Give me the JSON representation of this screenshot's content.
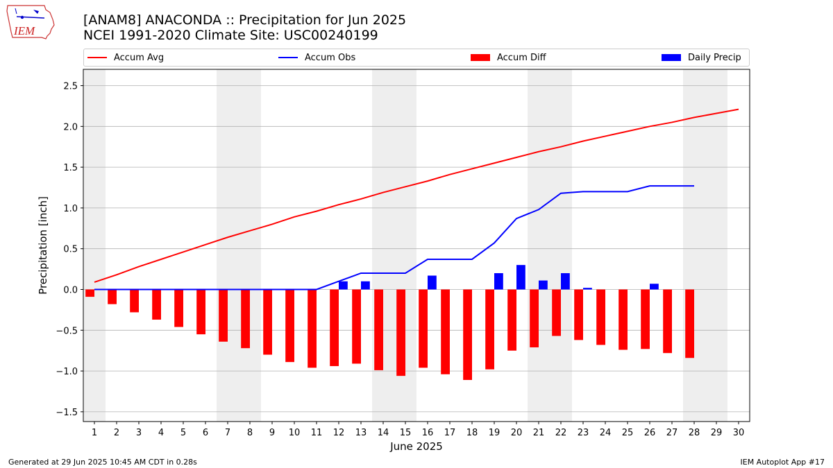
{
  "title_line1": "[ANAM8] ANACONDA :: Precipitation for Jun 2025",
  "title_line2": "NCEI 1991-2020 Climate Site: USC00240199",
  "footer_left": "Generated at 29 Jun 2025 10:45 AM CDT in 0.28s",
  "footer_right": "IEM Autoplot App #17",
  "logo_text": "IEM",
  "colors": {
    "avg": "#ff0000",
    "obs": "#0000ff",
    "diff": "#ff0000",
    "daily": "#0000ff",
    "weekend": "#eeeeee",
    "grid": "#b0b0b0"
  },
  "legend": [
    {
      "label": "Accum Avg",
      "kind": "line",
      "color": "#ff0000"
    },
    {
      "label": "Accum Obs",
      "kind": "line",
      "color": "#0000ff"
    },
    {
      "label": "Accum Diff",
      "kind": "box",
      "color": "#ff0000"
    },
    {
      "label": "Daily Precip",
      "kind": "box",
      "color": "#0000ff"
    }
  ],
  "chart_data": {
    "type": "bar",
    "xlabel": "June 2025",
    "ylabel": "Precipitation [inch]",
    "xlim": [
      0.5,
      30.5
    ],
    "ylim": [
      -1.62,
      2.7
    ],
    "yticks": [
      -1.5,
      -1.0,
      -0.5,
      0.0,
      0.5,
      1.0,
      1.5,
      2.0,
      2.5
    ],
    "ytick_labels": [
      "−1.5",
      "−1.0",
      "−0.5",
      "0.0",
      "0.5",
      "1.0",
      "1.5",
      "2.0",
      "2.5"
    ],
    "days": [
      1,
      2,
      3,
      4,
      5,
      6,
      7,
      8,
      9,
      10,
      11,
      12,
      13,
      14,
      15,
      16,
      17,
      18,
      19,
      20,
      21,
      22,
      23,
      24,
      25,
      26,
      27,
      28,
      29,
      30
    ],
    "weekend_days": [
      1,
      7,
      8,
      14,
      15,
      21,
      22,
      28,
      29
    ],
    "series": [
      {
        "name": "Accum Avg",
        "kind": "line",
        "values": [
          0.09,
          0.18,
          0.28,
          0.37,
          0.46,
          0.55,
          0.64,
          0.72,
          0.8,
          0.89,
          0.96,
          1.04,
          1.11,
          1.19,
          1.26,
          1.33,
          1.41,
          1.48,
          1.55,
          1.62,
          1.69,
          1.75,
          1.82,
          1.88,
          1.94,
          2.0,
          2.05,
          2.11,
          2.16,
          2.21
        ]
      },
      {
        "name": "Accum Obs",
        "kind": "line",
        "values": [
          0.0,
          0.0,
          0.0,
          0.0,
          0.0,
          0.0,
          0.0,
          0.0,
          0.0,
          0.0,
          0.0,
          0.1,
          0.2,
          0.2,
          0.2,
          0.37,
          0.37,
          0.37,
          0.57,
          0.87,
          0.98,
          1.18,
          1.2,
          1.2,
          1.2,
          1.27,
          1.27,
          1.27
        ]
      },
      {
        "name": "Accum Diff",
        "kind": "bar",
        "values": [
          -0.09,
          -0.18,
          -0.28,
          -0.37,
          -0.46,
          -0.55,
          -0.64,
          -0.72,
          -0.8,
          -0.89,
          -0.96,
          -0.94,
          -0.91,
          -0.99,
          -1.06,
          -0.96,
          -1.04,
          -1.11,
          -0.98,
          -0.75,
          -0.71,
          -0.57,
          -0.62,
          -0.68,
          -0.74,
          -0.73,
          -0.78,
          -0.84
        ]
      },
      {
        "name": "Daily Precip",
        "kind": "bar",
        "values": [
          0,
          0,
          0,
          0,
          0,
          0,
          0,
          0,
          0,
          0,
          0,
          0.1,
          0.1,
          0,
          0,
          0.17,
          0,
          0,
          0.2,
          0.3,
          0.11,
          0.2,
          0.02,
          0,
          0,
          0.07,
          0,
          0
        ]
      }
    ]
  }
}
